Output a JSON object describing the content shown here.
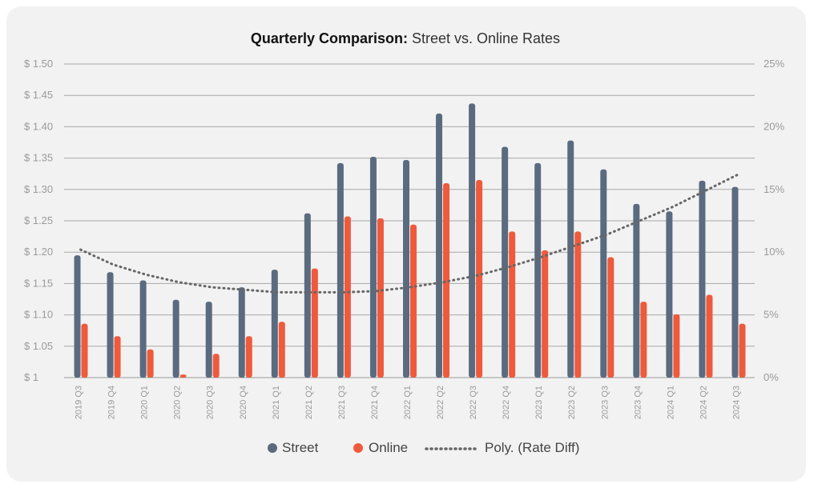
{
  "chart_data": {
    "type": "bar",
    "title_bold": "Quarterly Comparison:",
    "title_rest": " Street vs. Online Rates",
    "categories": [
      "2019 Q3",
      "2019 Q4",
      "2020 Q1",
      "2020 Q2",
      "2020 Q3",
      "2020 Q4",
      "2021 Q1",
      "2021 Q2",
      "2021 Q3",
      "2021 Q4",
      "2022 Q1",
      "2022 Q2",
      "2022 Q3",
      "2022 Q4",
      "2023 Q1",
      "2023 Q2",
      "2023 Q3",
      "2023 Q4",
      "2024 Q1",
      "2024 Q2",
      "2024 Q3"
    ],
    "series": [
      {
        "name": "Street",
        "color": "#5a6b80",
        "values": [
          1.195,
          1.168,
          1.155,
          1.124,
          1.121,
          1.144,
          1.172,
          1.262,
          1.342,
          1.352,
          1.347,
          1.421,
          1.437,
          1.368,
          1.342,
          1.378,
          1.332,
          1.277,
          1.265,
          1.314,
          1.304
        ]
      },
      {
        "name": "Online",
        "color": "#ef5a3c",
        "values": [
          1.086,
          1.066,
          1.045,
          1.005,
          1.038,
          1.066,
          1.089,
          1.174,
          1.257,
          1.254,
          1.244,
          1.31,
          1.315,
          1.233,
          1.203,
          1.233,
          1.192,
          1.121,
          1.101,
          1.132,
          1.086
        ]
      }
    ],
    "trend": {
      "name": "Poly. (Rate Diff)",
      "color": "#666666",
      "values": [
        10.2,
        9.0,
        8.2,
        7.6,
        7.2,
        7.0,
        6.8,
        6.8,
        6.8,
        6.9,
        7.2,
        7.6,
        8.1,
        8.8,
        9.6,
        10.5,
        11.4,
        12.5,
        13.6,
        14.9,
        16.2
      ]
    },
    "ylim": [
      1.0,
      1.5
    ],
    "yticks": [
      "$ 1.50",
      "$ 1.45",
      "$ 1.40",
      "$ 1.35",
      "$ 1.30",
      "$ 1.25",
      "$ 1.20",
      "$ 1.15",
      "$ 1.10",
      "$ 1.05",
      "$ 1"
    ],
    "y2lim": [
      0,
      25
    ],
    "y2ticks": [
      "25%",
      "20%",
      "15%",
      "10%",
      "5%",
      "0%"
    ],
    "legend": [
      "Street",
      "Online",
      "Poly. (Rate Diff)"
    ],
    "legend_position": "bottom"
  }
}
